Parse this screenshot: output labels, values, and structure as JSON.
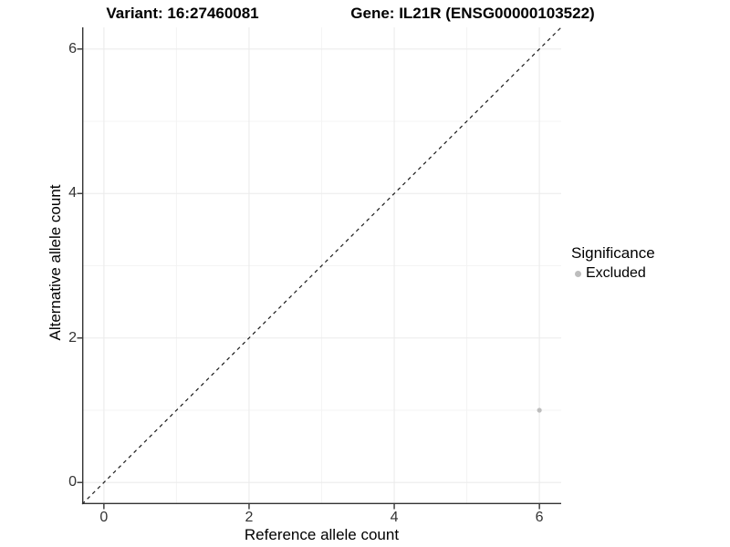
{
  "header": {
    "variant_title": "Variant: 16:27460081",
    "gene_title": "Gene: IL21R (ENSG00000103522)"
  },
  "chart_data": {
    "type": "scatter",
    "title": "Variant: 16:27460081  /  Gene: IL21R (ENSG00000103522)",
    "xlabel": "Reference allele count",
    "ylabel": "Alternative allele count",
    "xlim": [
      -0.3,
      6.3
    ],
    "ylim": [
      -0.3,
      6.3
    ],
    "x_ticks": [
      0,
      2,
      4,
      6
    ],
    "y_ticks": [
      0,
      2,
      4,
      6
    ],
    "x_minor_ticks": [
      1,
      3,
      5
    ],
    "y_minor_ticks": [
      1,
      3,
      5
    ],
    "grid": true,
    "axis_lines": [
      "left",
      "bottom"
    ],
    "reference_line": {
      "type": "identity",
      "equation": "y = x",
      "style": "dashed"
    },
    "series": [
      {
        "name": "Excluded",
        "points": [
          {
            "x": 6,
            "y": 1
          }
        ]
      }
    ],
    "legend": {
      "title": "Significance",
      "position": "right",
      "items": [
        {
          "label": "Excluded",
          "color": "#bdbdbd"
        }
      ]
    },
    "style": {
      "point_color": "#bdbdbd",
      "point_radius": 2.6,
      "grid_major_color": "#ebebeb",
      "grid_minor_color": "#f3f3f3",
      "axis_color": "#333333",
      "ref_line_color": "#1a1a1a",
      "background": "#ffffff"
    }
  }
}
